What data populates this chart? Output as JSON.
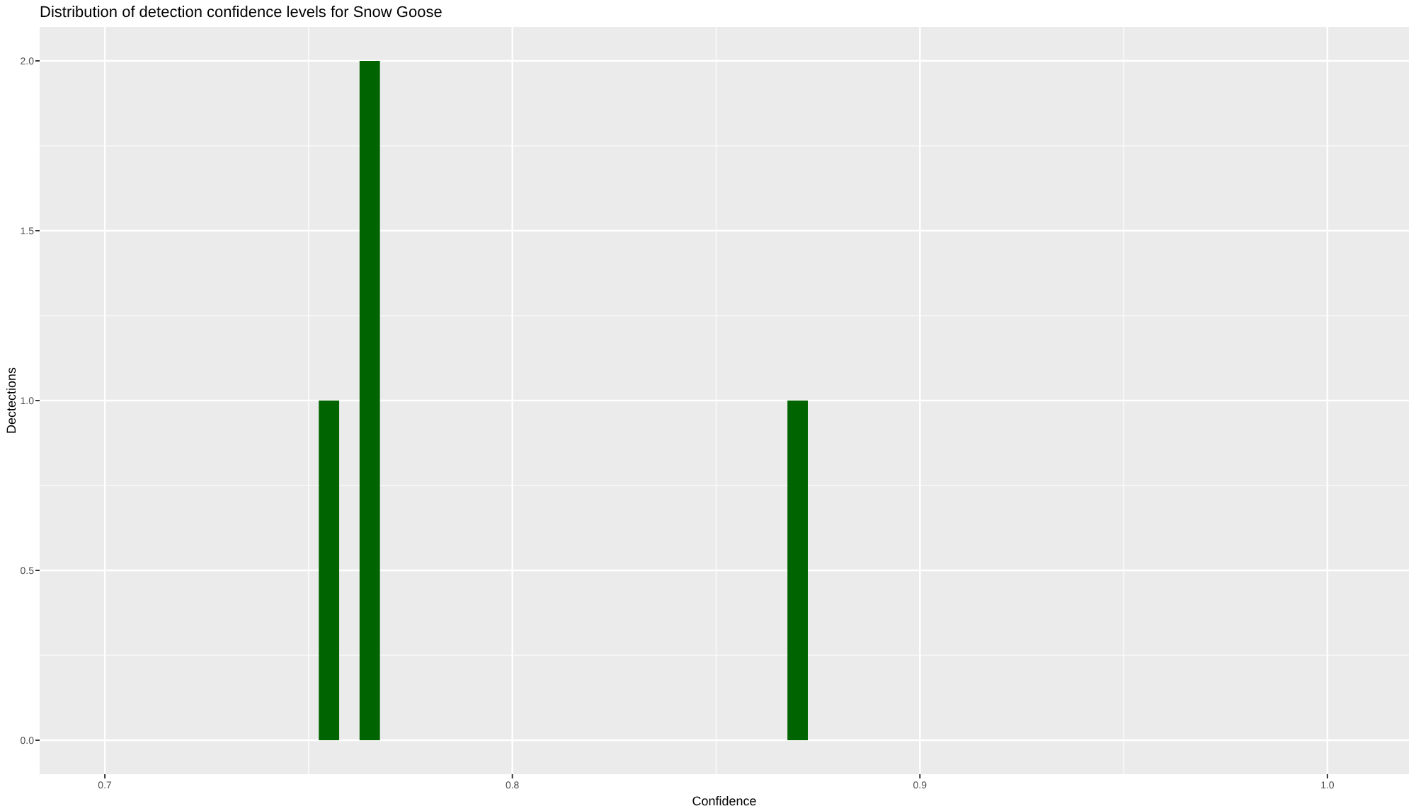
{
  "chart_data": {
    "type": "histogram",
    "title": "Distribution of detection confidence levels for Snow Goose",
    "xlabel": "Confidence",
    "ylabel": "Dectections",
    "bins": [
      0.7525,
      0.7575,
      0.7625,
      0.7675,
      0.7725,
      0.7775,
      0.7825,
      0.7875,
      0.7925,
      0.7975,
      0.8025,
      0.8075,
      0.8125,
      0.8175,
      0.8225,
      0.8275,
      0.8325,
      0.8375,
      0.8425,
      0.8475,
      0.8525,
      0.8575,
      0.8625,
      0.8675,
      0.8725
    ],
    "values": [
      1,
      0,
      2,
      0,
      0,
      0,
      0,
      0,
      0,
      0,
      0,
      0,
      0,
      0,
      0,
      0,
      0,
      0,
      0,
      0,
      0,
      0,
      0,
      1
    ],
    "color": "#006400",
    "xlim": [
      0.684,
      1.02
    ],
    "xticks": [
      0.7,
      0.8,
      0.9,
      {
        "value": 1,
        "label": "1.0"
      }
    ],
    "ylim": [
      -0.1,
      2.1
    ],
    "yticks": [
      {
        "value": 0,
        "label": "0.0"
      },
      0.5,
      {
        "value": 1,
        "label": "1.0"
      },
      1.5,
      {
        "value": 2,
        "label": "2.0"
      }
    ],
    "grid": true
  }
}
